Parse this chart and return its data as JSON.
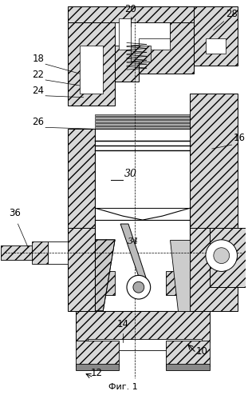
{
  "caption": "Фиг. 1",
  "bg_color": "#f5f5f0",
  "fig_width": 3.11,
  "fig_height": 4.99,
  "dpi": 100
}
